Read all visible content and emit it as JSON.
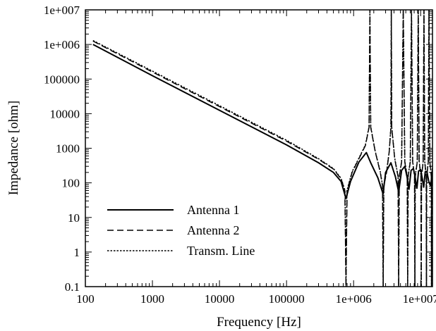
{
  "chart_data": {
    "type": "line",
    "xlabel": "Frequency [Hz]",
    "ylabel": "Impedance [ohm]",
    "x_scale": "log",
    "y_scale": "log",
    "xlim": [
      100,
      15000000
    ],
    "ylim": [
      0.1,
      10000000
    ],
    "x_ticks": [
      {
        "value": 100,
        "label": "100"
      },
      {
        "value": 1000,
        "label": "1000"
      },
      {
        "value": 10000,
        "label": "10000"
      },
      {
        "value": 100000,
        "label": "100000"
      },
      {
        "value": 1000000,
        "label": "1e+006"
      },
      {
        "value": 10000000,
        "label": "1e+007"
      }
    ],
    "y_ticks": [
      {
        "value": 0.1,
        "label": "0.1"
      },
      {
        "value": 1,
        "label": "1"
      },
      {
        "value": 10,
        "label": "10"
      },
      {
        "value": 100,
        "label": "100"
      },
      {
        "value": 1000,
        "label": "1000"
      },
      {
        "value": 10000,
        "label": "10000"
      },
      {
        "value": 100000,
        "label": "100000"
      },
      {
        "value": 1000000,
        "label": "1e+006"
      },
      {
        "value": 10000000,
        "label": "1e+007"
      }
    ],
    "grid": false,
    "legend_position": "bottom-left",
    "series": [
      {
        "name": "Antenna 1",
        "style": "solid",
        "color": "#000000",
        "points": [
          [
            130,
            1000000
          ],
          [
            1000,
            125000
          ],
          [
            10000,
            12500
          ],
          [
            100000,
            1250
          ],
          [
            300000,
            380
          ],
          [
            500000,
            200
          ],
          [
            650000,
            110
          ],
          [
            770000,
            35
          ],
          [
            900000,
            110
          ],
          [
            1200000,
            400
          ],
          [
            1550000,
            750
          ],
          [
            1800000,
            380
          ],
          [
            2300000,
            140
          ],
          [
            2750000,
            48
          ],
          [
            3000000,
            200
          ],
          [
            3600000,
            380
          ],
          [
            4200000,
            150
          ],
          [
            4700000,
            55
          ],
          [
            5200000,
            230
          ],
          [
            5800000,
            300
          ],
          [
            6300000,
            140
          ],
          [
            6700000,
            65
          ],
          [
            7200000,
            230
          ],
          [
            7800000,
            260
          ],
          [
            8300000,
            140
          ],
          [
            8800000,
            70
          ],
          [
            9300000,
            220
          ],
          [
            10000000,
            240
          ],
          [
            10600000,
            130
          ],
          [
            11100000,
            75
          ],
          [
            11700000,
            210
          ],
          [
            12400000,
            210
          ],
          [
            13200000,
            110
          ],
          [
            14000000,
            85
          ],
          [
            15000000,
            190
          ]
        ]
      },
      {
        "name": "Antenna 2",
        "style": "dashed",
        "color": "#000000",
        "points": [
          [
            130,
            1250000
          ],
          [
            1000,
            160000
          ],
          [
            10000,
            16000
          ],
          [
            100000,
            1600
          ],
          [
            300000,
            480
          ],
          [
            500000,
            250
          ],
          [
            650000,
            130
          ],
          [
            740000,
            60
          ],
          [
            770000,
            0.1
          ],
          [
            800000,
            60
          ],
          [
            950000,
            200
          ],
          [
            1200000,
            500
          ],
          [
            1500000,
            1200
          ],
          [
            1700000,
            4000
          ],
          [
            1750000,
            10000000
          ],
          [
            1800000,
            4000
          ],
          [
            2100000,
            800
          ],
          [
            2500000,
            200
          ],
          [
            2700000,
            80
          ],
          [
            2760000,
            0.1
          ],
          [
            2820000,
            80
          ],
          [
            3100000,
            200
          ],
          [
            3400000,
            800
          ],
          [
            3600000,
            4000
          ],
          [
            3650000,
            10000000
          ],
          [
            3700000,
            4000
          ],
          [
            4100000,
            500
          ],
          [
            4600000,
            150
          ],
          [
            4700000,
            0.1
          ],
          [
            4800000,
            150
          ],
          [
            5200000,
            400
          ],
          [
            5500000,
            10000000
          ],
          [
            5800000,
            400
          ],
          [
            6300000,
            150
          ],
          [
            6400000,
            0.1
          ],
          [
            6500000,
            150
          ],
          [
            7000000,
            400
          ],
          [
            7300000,
            10000000
          ],
          [
            7600000,
            400
          ],
          [
            8100000,
            150
          ],
          [
            8200000,
            0.1
          ],
          [
            8300000,
            150
          ],
          [
            8900000,
            400
          ],
          [
            9200000,
            10000000
          ],
          [
            9500000,
            400
          ],
          [
            10100000,
            150
          ],
          [
            10200000,
            0.1
          ],
          [
            10300000,
            150
          ],
          [
            10900000,
            400
          ],
          [
            11200000,
            10000000
          ],
          [
            11500000,
            400
          ],
          [
            12100000,
            150
          ],
          [
            12200000,
            0.1
          ],
          [
            12300000,
            150
          ],
          [
            13000000,
            400
          ],
          [
            13300000,
            10000000
          ],
          [
            13700000,
            400
          ],
          [
            14400000,
            150
          ],
          [
            14500000,
            0.1
          ],
          [
            14600000,
            150
          ],
          [
            15000000,
            300
          ]
        ]
      },
      {
        "name": "Transm. Line",
        "style": "dotted",
        "color": "#000000",
        "points": [
          [
            130,
            1300000
          ],
          [
            1000,
            170000
          ],
          [
            10000,
            17000
          ],
          [
            100000,
            1700
          ],
          [
            300000,
            500
          ],
          [
            500000,
            260
          ],
          [
            650000,
            135
          ],
          [
            745000,
            60
          ],
          [
            770000,
            0.1
          ],
          [
            795000,
            60
          ],
          [
            950000,
            210
          ],
          [
            1200000,
            520
          ],
          [
            1500000,
            1250
          ],
          [
            1700000,
            4200
          ],
          [
            1750000,
            10000000
          ],
          [
            1800000,
            4200
          ],
          [
            2100000,
            820
          ],
          [
            2500000,
            210
          ],
          [
            2700000,
            85
          ],
          [
            2760000,
            0.1
          ],
          [
            2820000,
            85
          ],
          [
            3100000,
            210
          ],
          [
            3400000,
            820
          ],
          [
            3600000,
            4200
          ],
          [
            3650000,
            10000000
          ],
          [
            3700000,
            4200
          ],
          [
            4100000,
            520
          ],
          [
            4600000,
            160
          ],
          [
            4700000,
            0.1
          ],
          [
            4800000,
            160
          ],
          [
            5200000,
            420
          ],
          [
            5500000,
            10000000
          ],
          [
            5800000,
            420
          ],
          [
            6300000,
            160
          ],
          [
            6400000,
            0.1
          ],
          [
            6500000,
            160
          ],
          [
            7000000,
            420
          ],
          [
            7300000,
            10000000
          ],
          [
            7600000,
            420
          ],
          [
            8100000,
            160
          ],
          [
            8200000,
            0.1
          ],
          [
            8300000,
            160
          ],
          [
            8900000,
            420
          ],
          [
            9200000,
            10000000
          ],
          [
            9500000,
            420
          ],
          [
            10100000,
            160
          ],
          [
            10200000,
            0.1
          ],
          [
            10300000,
            160
          ],
          [
            10900000,
            420
          ],
          [
            11200000,
            10000000
          ],
          [
            11500000,
            420
          ],
          [
            12100000,
            160
          ],
          [
            12200000,
            0.1
          ],
          [
            12300000,
            160
          ],
          [
            13000000,
            420
          ],
          [
            13300000,
            10000000
          ],
          [
            13700000,
            420
          ],
          [
            14400000,
            160
          ],
          [
            14500000,
            0.1
          ],
          [
            14600000,
            160
          ],
          [
            15000000,
            320
          ]
        ]
      }
    ]
  }
}
